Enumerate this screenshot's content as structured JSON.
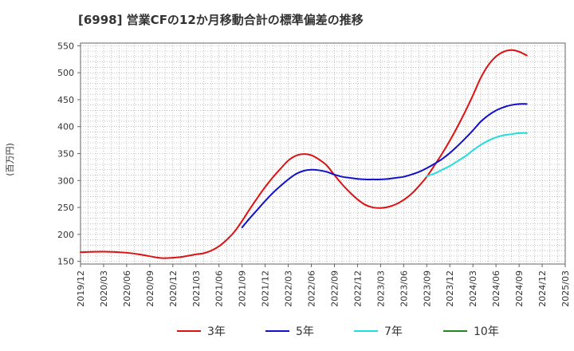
{
  "chart_data": {
    "type": "line",
    "title": "[6998]  営業CFの12か月移動合計の標準偏差の推移",
    "ylabel": "(百万円)",
    "xlabel": "",
    "ylim": [
      145,
      555
    ],
    "yticks": [
      150,
      200,
      250,
      300,
      350,
      400,
      450,
      500,
      550
    ],
    "x_ticks": [
      "2019/12",
      "2020/03",
      "2020/06",
      "2020/09",
      "2020/12",
      "2021/03",
      "2021/06",
      "2021/09",
      "2021/12",
      "2022/03",
      "2022/06",
      "2022/09",
      "2022/12",
      "2023/03",
      "2023/06",
      "2023/09",
      "2023/12",
      "2024/03",
      "2024/06",
      "2024/09",
      "2024/12",
      "2025/03"
    ],
    "grid": true,
    "legend_position": "bottom",
    "series": [
      {
        "name": "3年",
        "color": "#dd1111",
        "points": [
          [
            "2019/12",
            167
          ],
          [
            "2020/03",
            168
          ],
          [
            "2020/06",
            166
          ],
          [
            "2020/08",
            162
          ],
          [
            "2020/10",
            157
          ],
          [
            "2020/11",
            156
          ],
          [
            "2021/01",
            158
          ],
          [
            "2021/03",
            163
          ],
          [
            "2021/04",
            165
          ],
          [
            "2021/05",
            170
          ],
          [
            "2021/06",
            178
          ],
          [
            "2021/07",
            190
          ],
          [
            "2021/08",
            205
          ],
          [
            "2021/09",
            225
          ],
          [
            "2021/10",
            247
          ],
          [
            "2021/11",
            268
          ],
          [
            "2021/12",
            288
          ],
          [
            "2022/01",
            306
          ],
          [
            "2022/02",
            322
          ],
          [
            "2022/03",
            337
          ],
          [
            "2022/04",
            346
          ],
          [
            "2022/05",
            349
          ],
          [
            "2022/06",
            347
          ],
          [
            "2022/07",
            339
          ],
          [
            "2022/08",
            328
          ],
          [
            "2022/09",
            310
          ],
          [
            "2022/10",
            293
          ],
          [
            "2022/11",
            278
          ],
          [
            "2022/12",
            265
          ],
          [
            "2023/01",
            255
          ],
          [
            "2023/02",
            250
          ],
          [
            "2023/03",
            249
          ],
          [
            "2023/04",
            251
          ],
          [
            "2023/05",
            256
          ],
          [
            "2023/06",
            264
          ],
          [
            "2023/07",
            275
          ],
          [
            "2023/08",
            290
          ],
          [
            "2023/09",
            307
          ],
          [
            "2023/10",
            328
          ],
          [
            "2023/11",
            350
          ],
          [
            "2023/12",
            374
          ],
          [
            "2024/01",
            400
          ],
          [
            "2024/02",
            428
          ],
          [
            "2024/03",
            458
          ],
          [
            "2024/04",
            490
          ],
          [
            "2024/05",
            514
          ],
          [
            "2024/06",
            530
          ],
          [
            "2024/07",
            539
          ],
          [
            "2024/08",
            542
          ],
          [
            "2024/09",
            539
          ],
          [
            "2024/10",
            532
          ]
        ]
      },
      {
        "name": "5年",
        "color": "#1111cc",
        "points": [
          [
            "2021/09",
            213
          ],
          [
            "2021/10",
            230
          ],
          [
            "2021/11",
            246
          ],
          [
            "2021/12",
            262
          ],
          [
            "2022/01",
            277
          ],
          [
            "2022/02",
            290
          ],
          [
            "2022/03",
            302
          ],
          [
            "2022/04",
            312
          ],
          [
            "2022/05",
            318
          ],
          [
            "2022/06",
            320
          ],
          [
            "2022/07",
            319
          ],
          [
            "2022/08",
            316
          ],
          [
            "2022/09",
            311
          ],
          [
            "2022/10",
            307
          ],
          [
            "2022/11",
            305
          ],
          [
            "2022/12",
            303
          ],
          [
            "2023/01",
            302
          ],
          [
            "2023/02",
            302
          ],
          [
            "2023/03",
            302
          ],
          [
            "2023/04",
            303
          ],
          [
            "2023/05",
            305
          ],
          [
            "2023/06",
            307
          ],
          [
            "2023/07",
            311
          ],
          [
            "2023/08",
            316
          ],
          [
            "2023/09",
            323
          ],
          [
            "2023/10",
            331
          ],
          [
            "2023/11",
            340
          ],
          [
            "2023/12",
            351
          ],
          [
            "2024/01",
            364
          ],
          [
            "2024/02",
            378
          ],
          [
            "2024/03",
            393
          ],
          [
            "2024/04",
            409
          ],
          [
            "2024/05",
            421
          ],
          [
            "2024/06",
            430
          ],
          [
            "2024/07",
            436
          ],
          [
            "2024/08",
            440
          ],
          [
            "2024/09",
            442
          ],
          [
            "2024/10",
            442
          ]
        ]
      },
      {
        "name": "7年",
        "color": "#22dddd",
        "points": [
          [
            "2023/09",
            308
          ],
          [
            "2023/10",
            313
          ],
          [
            "2023/11",
            320
          ],
          [
            "2023/12",
            327
          ],
          [
            "2024/01",
            336
          ],
          [
            "2024/02",
            345
          ],
          [
            "2024/03",
            356
          ],
          [
            "2024/04",
            366
          ],
          [
            "2024/05",
            374
          ],
          [
            "2024/06",
            380
          ],
          [
            "2024/07",
            384
          ],
          [
            "2024/08",
            386
          ],
          [
            "2024/09",
            388
          ],
          [
            "2024/10",
            388
          ]
        ]
      },
      {
        "name": "10年",
        "color": "#228822",
        "points": []
      }
    ]
  }
}
